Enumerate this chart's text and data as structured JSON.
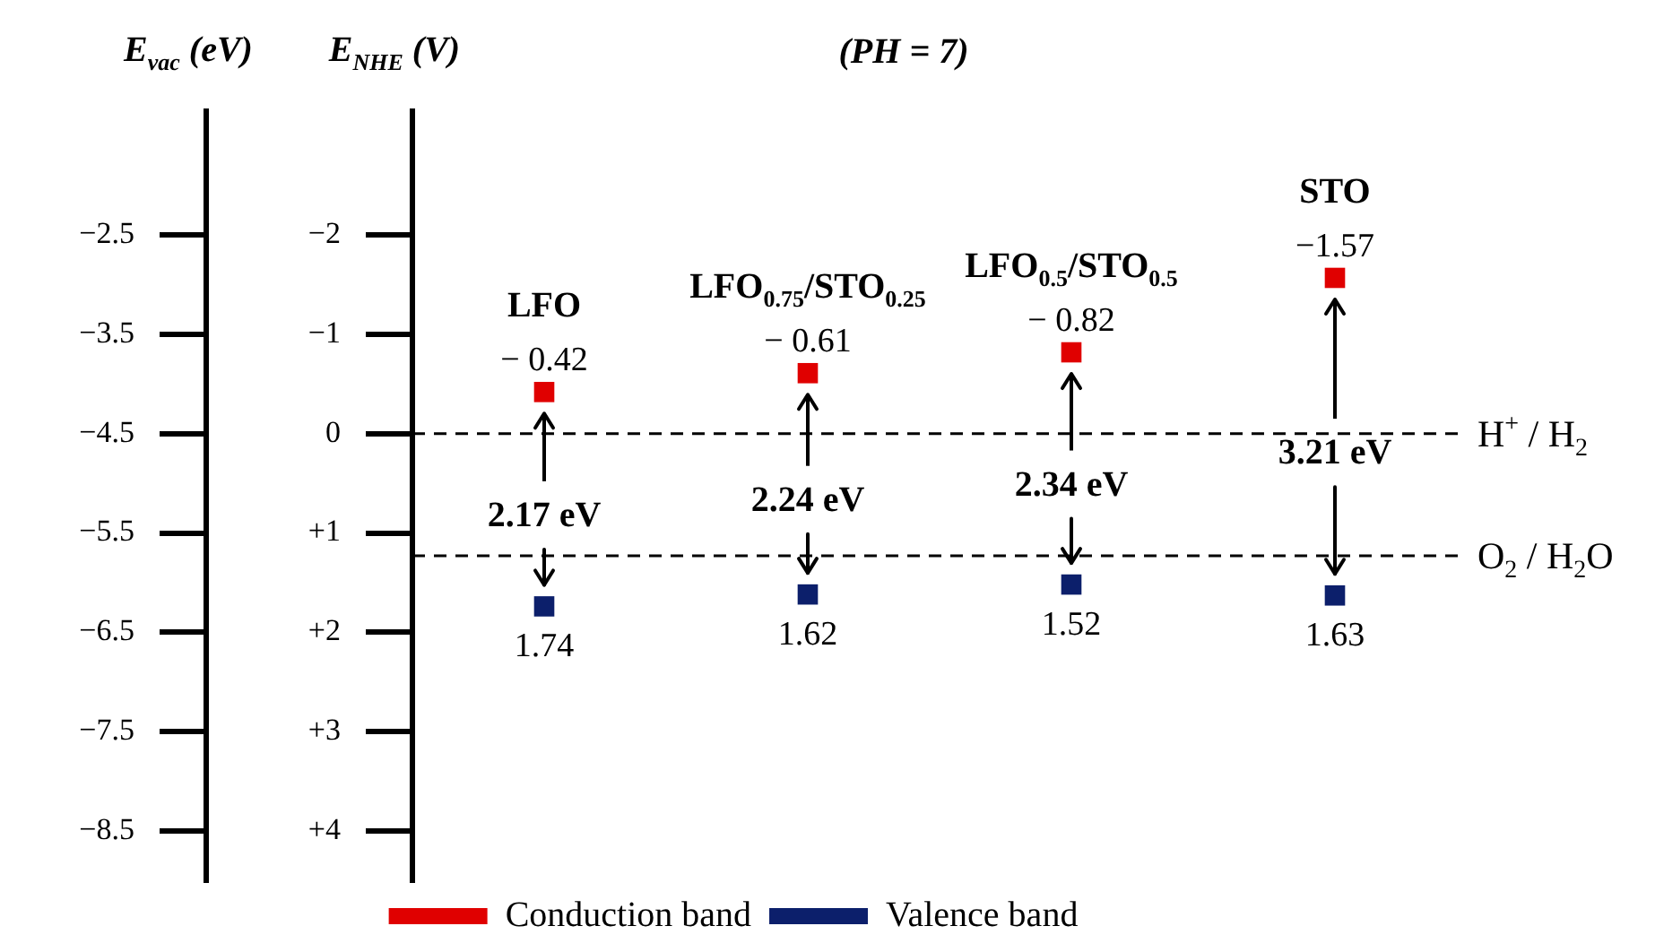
{
  "chart_data": {
    "type": "scatter",
    "title": "(PH = 7)",
    "ylabel": "E$_{NHE}$ (V)",
    "y2label": "E$_{vac}$ (eV)",
    "categories": [
      "LFO",
      "LFO$_{0.75}$/STO$_{0.25}$",
      "LFO$_{0.5}$/STO$_{0.5}$",
      "STO"
    ],
    "series": [
      {
        "name": "Conduction band",
        "color": "#e00000",
        "values": [
          -0.42,
          -0.61,
          -0.82,
          -1.57
        ],
        "value_labels": [
          "− 0.42",
          "− 0.61",
          "− 0.82",
          "−1.57"
        ]
      },
      {
        "name": "Valence band",
        "color": "#0c1f6b",
        "values": [
          1.74,
          1.62,
          1.52,
          1.63
        ],
        "value_labels": [
          "1.74",
          "1.62",
          "1.52",
          "1.63"
        ]
      }
    ],
    "ylim": [
      4.5,
      -3.25
    ],
    "yticks": [
      {
        "value": -2,
        "label": "−2"
      },
      {
        "value": -1,
        "label": "−1"
      },
      0,
      {
        "value": 1,
        "label": "+1"
      },
      {
        "value": 2,
        "label": "+2"
      },
      {
        "value": 3,
        "label": "+3"
      },
      {
        "value": 4,
        "label": "+4"
      }
    ],
    "y2lim": [
      -9,
      -1.25
    ],
    "y2ticks": [
      {
        "value": -2.5,
        "label": "−2.5"
      },
      {
        "value": -3.5,
        "label": "−3.5"
      },
      {
        "value": -4.5,
        "label": "−4.5"
      },
      {
        "value": -5.5,
        "label": "−5.5"
      },
      {
        "value": -6.5,
        "label": "−6.5"
      },
      {
        "value": -7.5,
        "label": "−7.5"
      },
      {
        "value": -8.5,
        "label": "−8.5"
      }
    ],
    "ref_lines": [
      {
        "axis": "y",
        "value": 0,
        "label": "H$^{+}$ / H$_{2}$",
        "color": "#000000",
        "line_style": "dashed"
      },
      {
        "axis": "y",
        "value": 1.23,
        "label": "O$_{2}$ / H$_{2}$O",
        "color": "#000000",
        "line_style": "dashed"
      }
    ],
    "annotations": [
      "2.17 eV",
      "2.24 eV",
      "2.34 eV",
      "3.21 eV"
    ],
    "legend": "bottom",
    "grid": false,
    "tick_labels": "y",
    "marker": "square"
  }
}
